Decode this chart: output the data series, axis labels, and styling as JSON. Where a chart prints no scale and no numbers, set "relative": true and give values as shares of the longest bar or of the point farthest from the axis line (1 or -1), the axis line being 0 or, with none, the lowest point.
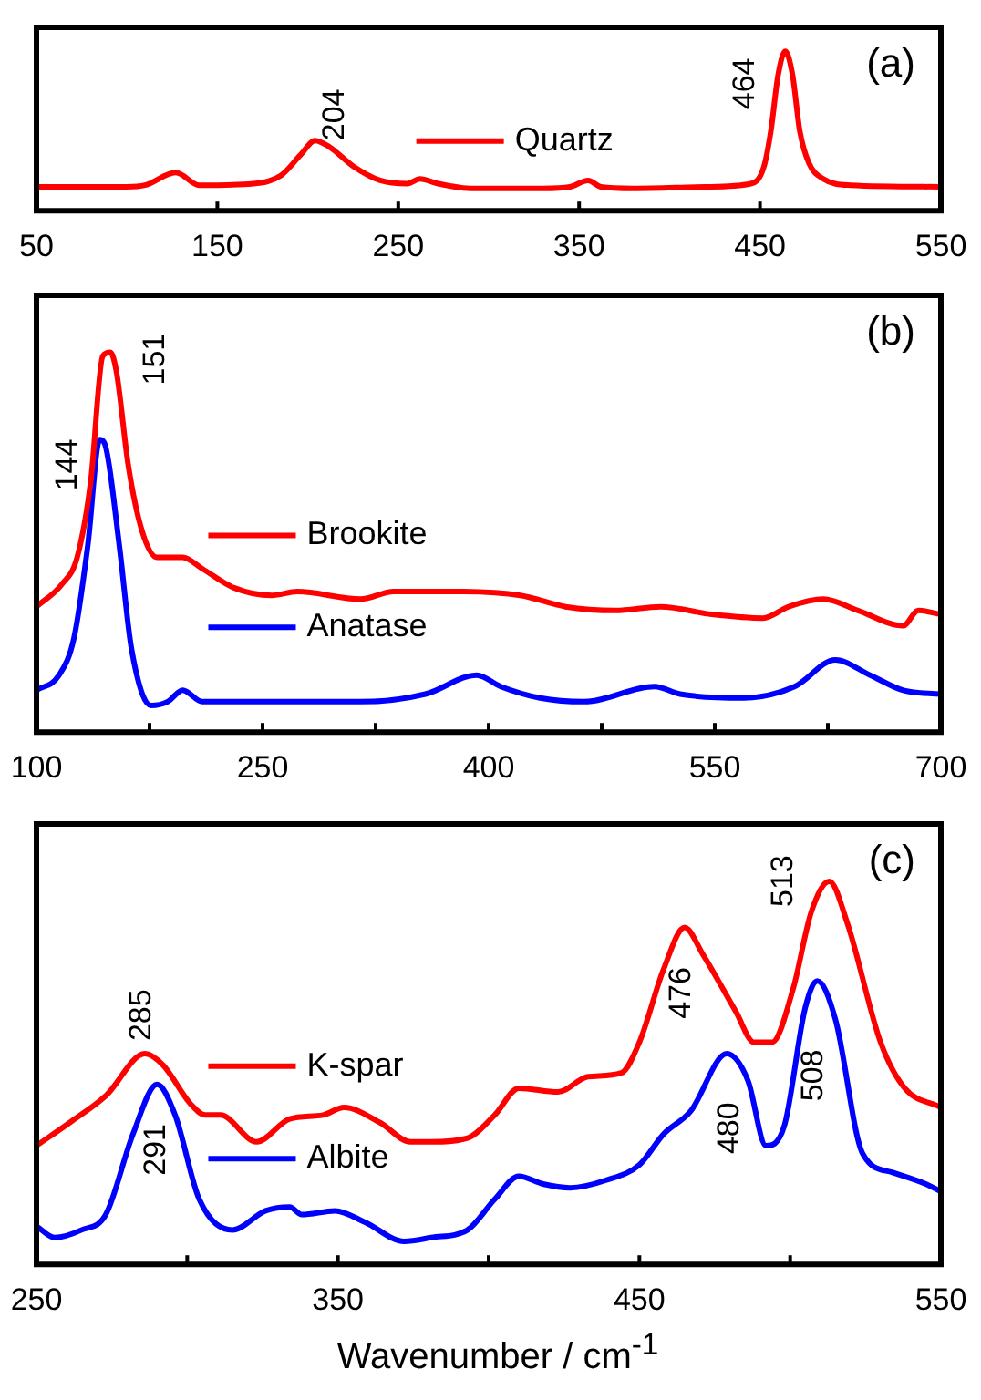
{
  "chart_data": [
    {
      "type": "line",
      "relative": true,
      "marker": "none",
      "legend": "center",
      "xlim": [
        50,
        550
      ],
      "xticks": [
        50,
        150,
        250,
        350,
        450,
        550
      ],
      "annotations": [
        "(a)",
        {
          "text": "204",
          "x": 204,
          "y": 0.44
        },
        {
          "text": "464",
          "x": 464,
          "y": 1.0
        }
      ],
      "series": [
        {
          "name": "Quartz",
          "color": "#ff0000",
          "x": [
            50,
            100,
            110,
            127,
            140,
            170,
            185,
            196,
            204,
            212,
            225,
            240,
            255,
            262,
            272,
            290,
            330,
            345,
            355,
            362,
            380,
            420,
            445,
            452,
            456,
            460,
            464,
            468,
            472,
            477,
            485,
            500,
            550
          ],
          "values": [
            0.15,
            0.15,
            0.16,
            0.24,
            0.16,
            0.17,
            0.22,
            0.35,
            0.44,
            0.4,
            0.28,
            0.19,
            0.17,
            0.2,
            0.17,
            0.14,
            0.14,
            0.15,
            0.19,
            0.15,
            0.14,
            0.15,
            0.17,
            0.27,
            0.5,
            0.85,
            1.0,
            0.85,
            0.5,
            0.3,
            0.2,
            0.16,
            0.15
          ]
        }
      ]
    },
    {
      "type": "line",
      "relative": true,
      "marker": "none",
      "legend": "left",
      "xlim": [
        100,
        700
      ],
      "xticks": [
        100,
        {
          "value": 175,
          "label": null
        },
        250,
        {
          "value": 325,
          "label": null
        },
        400,
        {
          "value": 475,
          "label": null
        },
        550,
        {
          "value": 625,
          "label": null
        },
        700
      ],
      "annotations": [
        "(b)",
        {
          "text": "144",
          "x": 144,
          "y": 0.77
        },
        {
          "text": "151",
          "x": 151,
          "y": 1.0
        }
      ],
      "series": [
        {
          "name": "Brookite",
          "color": "#ff0000",
          "x": [
            100,
            117,
            127,
            136,
            144,
            149,
            153,
            161,
            170,
            180,
            197,
            210,
            231,
            256,
            273,
            315,
            337,
            379,
            421,
            451,
            484,
            514,
            548,
            582,
            599,
            622,
            645,
            675,
            685,
            700
          ],
          "values": [
            0.33,
            0.39,
            0.46,
            0.66,
            0.99,
            1.0,
            0.95,
            0.7,
            0.53,
            0.46,
            0.46,
            0.43,
            0.38,
            0.36,
            0.37,
            0.35,
            0.37,
            0.37,
            0.36,
            0.33,
            0.32,
            0.33,
            0.31,
            0.3,
            0.33,
            0.35,
            0.32,
            0.28,
            0.32,
            0.31
          ]
        },
        {
          "name": "Anatase",
          "color": "#0000ff",
          "x": [
            100,
            115,
            125,
            134,
            142,
            146,
            155,
            163,
            176,
            187,
            197,
            210,
            231,
            273,
            315,
            358,
            392,
            408,
            434,
            463,
            510,
            527,
            569,
            603,
            630,
            653,
            675,
            700
          ],
          "values": [
            0.11,
            0.15,
            0.25,
            0.49,
            0.77,
            0.75,
            0.49,
            0.22,
            0.07,
            0.08,
            0.11,
            0.08,
            0.08,
            0.08,
            0.08,
            0.1,
            0.15,
            0.12,
            0.09,
            0.08,
            0.12,
            0.1,
            0.09,
            0.12,
            0.19,
            0.15,
            0.11,
            0.1
          ]
        }
      ]
    },
    {
      "type": "line",
      "relative": true,
      "marker": "none",
      "legend": "left",
      "xlabel": "Wavenumber / cm$^{-1}$",
      "xlim": [
        250,
        550
      ],
      "xticks": [
        250,
        {
          "value": 300,
          "label": null
        },
        350,
        {
          "value": 400,
          "label": null
        },
        450,
        {
          "value": 500,
          "label": null
        },
        550
      ],
      "annotations": [
        "(c)",
        {
          "text": "285",
          "x": 285,
          "y": 0.55
        },
        {
          "text": "291",
          "x": 291,
          "y": 0.47
        },
        {
          "text": "476",
          "x": 476,
          "y": 0.76
        },
        {
          "text": "480",
          "x": 480,
          "y": 0.55
        },
        {
          "text": "508",
          "x": 508,
          "y": 0.74
        },
        {
          "text": "513",
          "x": 513,
          "y": 1.0
        }
      ],
      "series": [
        {
          "name": "K-spar",
          "color": "#ff0000",
          "x": [
            250,
            261,
            273,
            286,
            292,
            301,
            306,
            311,
            323,
            334,
            345,
            352,
            364,
            374,
            381,
            393,
            402,
            410,
            423,
            433,
            444,
            450,
            458,
            465,
            471,
            482,
            488,
            494,
            501,
            507,
            513,
            519,
            530,
            538,
            550
          ],
          "values": [
            0.31,
            0.37,
            0.44,
            0.55,
            0.52,
            0.42,
            0.39,
            0.39,
            0.32,
            0.38,
            0.39,
            0.41,
            0.37,
            0.32,
            0.32,
            0.33,
            0.39,
            0.46,
            0.45,
            0.49,
            0.5,
            0.58,
            0.77,
            0.88,
            0.81,
            0.66,
            0.58,
            0.58,
            0.72,
            0.92,
            1.0,
            0.89,
            0.58,
            0.46,
            0.41
          ]
        },
        {
          "name": "Albite",
          "color": "#0000ff",
          "x": [
            250,
            256,
            265,
            273,
            282,
            290,
            296,
            304,
            315,
            326,
            334,
            338,
            349,
            359,
            372,
            381,
            393,
            402,
            410,
            418,
            427,
            439,
            450,
            458,
            467,
            479,
            486,
            492,
            498,
            505,
            509,
            515,
            524,
            534,
            545,
            550
          ],
          "values": [
            0.1,
            0.07,
            0.09,
            0.13,
            0.34,
            0.47,
            0.39,
            0.17,
            0.09,
            0.14,
            0.15,
            0.13,
            0.14,
            0.11,
            0.06,
            0.07,
            0.09,
            0.17,
            0.23,
            0.21,
            0.2,
            0.22,
            0.26,
            0.34,
            0.4,
            0.55,
            0.48,
            0.31,
            0.36,
            0.67,
            0.74,
            0.64,
            0.29,
            0.24,
            0.21,
            0.19
          ]
        }
      ]
    }
  ]
}
